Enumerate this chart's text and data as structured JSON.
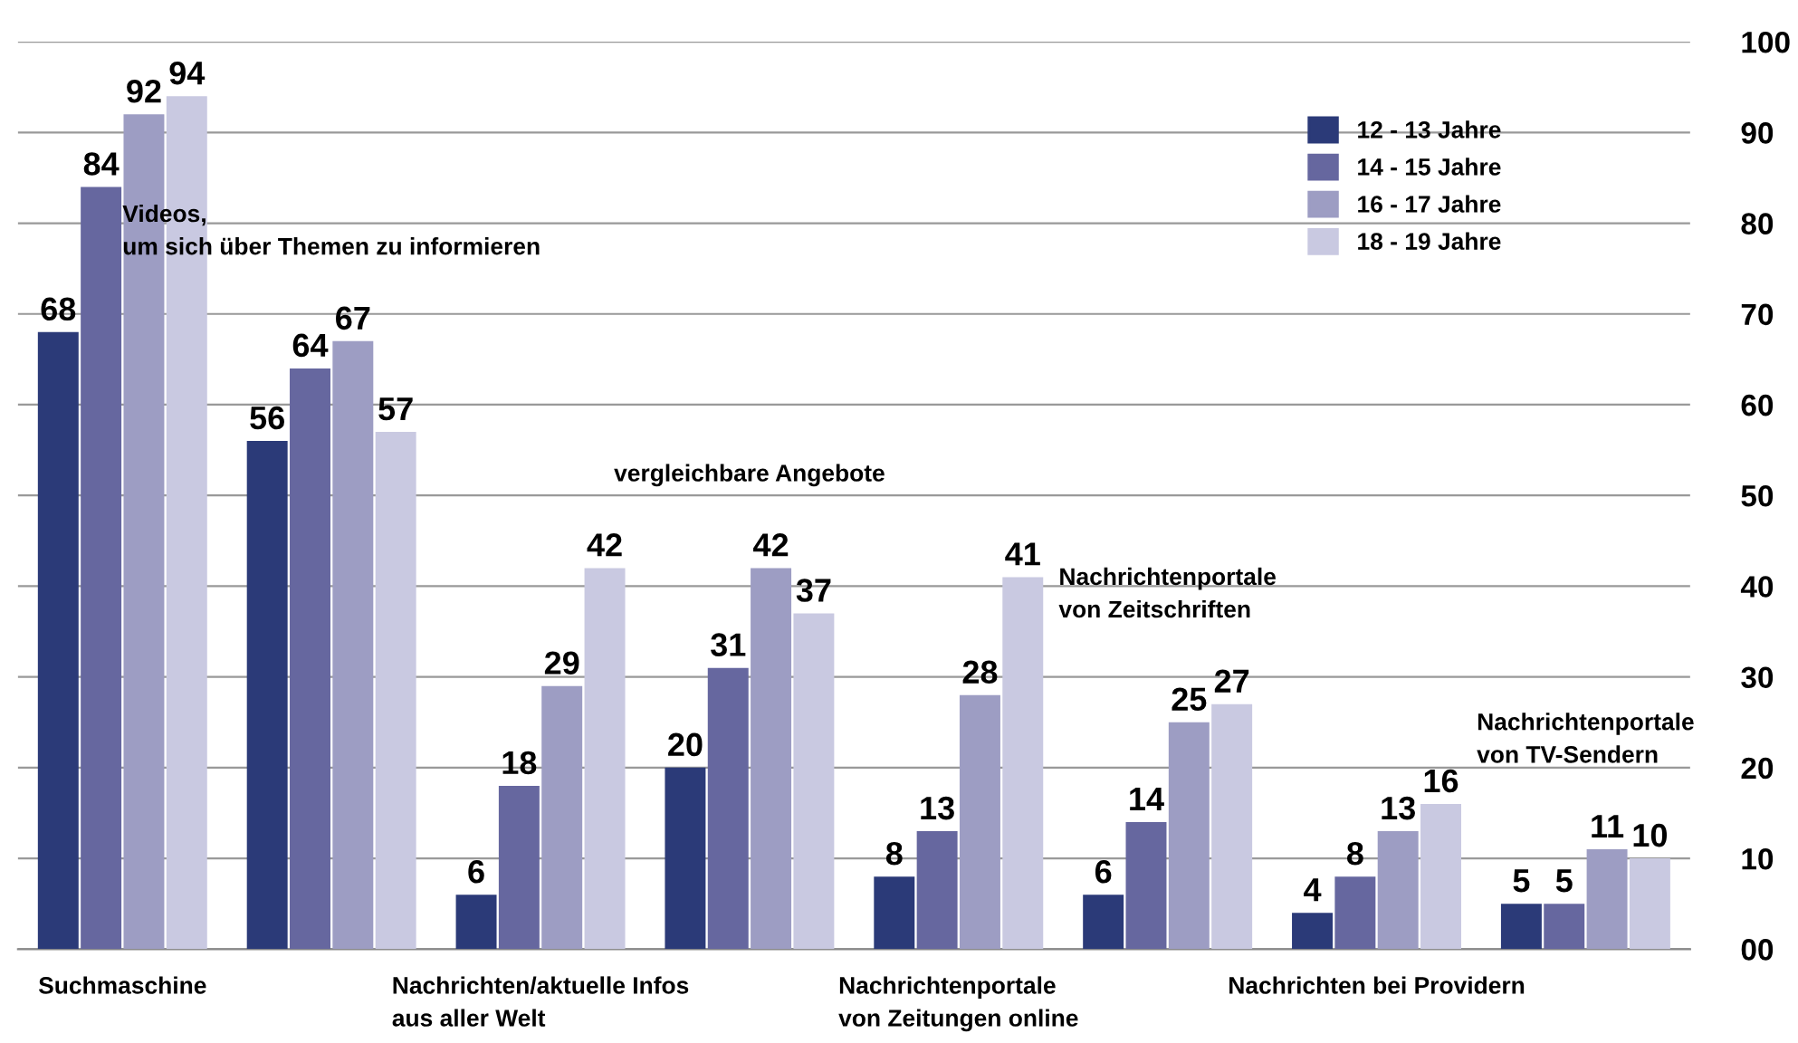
{
  "chart_data": {
    "type": "bar",
    "categories": [
      "Suchmaschine",
      "Videos,\num sich über Themen zu informieren",
      "Nachrichten/aktuelle Infos\naus aller Welt",
      "vergleichbare Angebote",
      "Nachrichtenportale\nvon Zeitungen online",
      "Nachrichtenportale\nvon Zeitschriften",
      "Nachrichten bei Providern",
      "Nachrichtenportale\nvon TV-Sendern"
    ],
    "series": [
      {
        "name": "12 - 13 Jahre",
        "color": "#2b3a78",
        "values": [
          68,
          56,
          6,
          20,
          8,
          6,
          4,
          5
        ]
      },
      {
        "name": "14 - 15 Jahre",
        "color": "#66679f",
        "values": [
          84,
          64,
          18,
          31,
          13,
          14,
          8,
          5
        ]
      },
      {
        "name": "16 - 17 Jahre",
        "color": "#9d9dc3",
        "values": [
          92,
          67,
          29,
          42,
          28,
          25,
          13,
          11
        ]
      },
      {
        "name": "18 - 19 Jahre",
        "color": "#c9c9e1",
        "values": [
          94,
          57,
          42,
          37,
          41,
          27,
          16,
          10
        ]
      }
    ],
    "ylim": [
      0,
      100
    ],
    "yticks": [
      {
        "value": 0,
        "label": "00"
      },
      10,
      20,
      30,
      40,
      50,
      60,
      70,
      80,
      90,
      100
    ],
    "grid": "y",
    "legend": "top right",
    "data_labels": true
  }
}
